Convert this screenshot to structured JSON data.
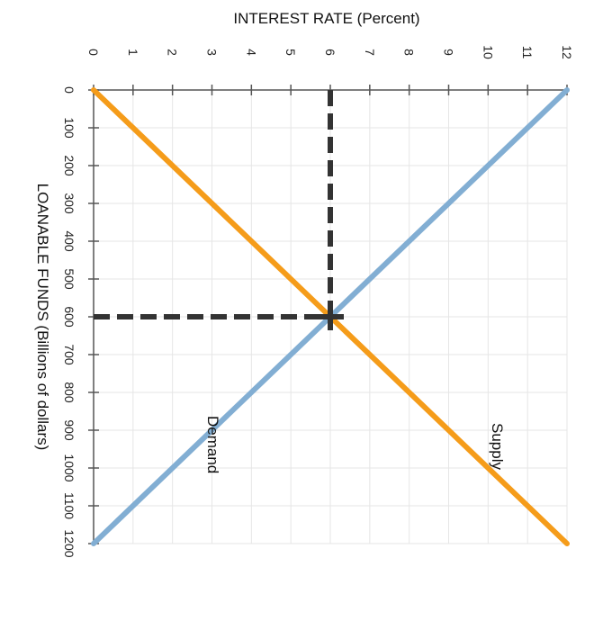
{
  "chart_data": {
    "type": "line",
    "orientation": "rotated 90deg clockwise (interest rate on top axis, loanable funds on left axis)",
    "title": "",
    "xlabel": "LOANABLE FUNDS (Billions of dollars)",
    "ylabel": "INTEREST RATE (Percent)",
    "x_ticks": [
      0,
      100,
      200,
      300,
      400,
      500,
      600,
      700,
      800,
      900,
      1000,
      1100,
      1200
    ],
    "y_ticks": [
      0,
      1,
      2,
      3,
      4,
      5,
      6,
      7,
      8,
      9,
      10,
      11,
      12
    ],
    "xlim": [
      0,
      1200
    ],
    "ylim": [
      0,
      12
    ],
    "grid": true,
    "series": [
      {
        "name": "Supply",
        "color": "#f59c1a",
        "x": [
          0,
          1200
        ],
        "y": [
          0,
          12
        ]
      },
      {
        "name": "Demand",
        "color": "#82aed3",
        "x": [
          0,
          1200
        ],
        "y": [
          12,
          0
        ]
      }
    ],
    "equilibrium": {
      "x": 600,
      "y": 6,
      "marker": "plus",
      "color": "#333333",
      "guides": "dashed"
    },
    "annotations": [
      {
        "text": "Supply",
        "x": 1000,
        "y": 10.2
      },
      {
        "text": "Demand",
        "x": 900,
        "y": 3
      }
    ]
  },
  "labels": {
    "top_axis_title": "INTEREST RATE (Percent)",
    "left_axis_title": "LOANABLE FUNDS (Billions of dollars)",
    "supply": "Supply",
    "demand": "Demand"
  },
  "ticks": {
    "rate": [
      "0",
      "1",
      "2",
      "3",
      "4",
      "5",
      "6",
      "7",
      "8",
      "9",
      "10",
      "11",
      "12"
    ],
    "funds": [
      "0",
      "100",
      "200",
      "300",
      "400",
      "500",
      "600",
      "700",
      "800",
      "900",
      "1000",
      "1100",
      "1200"
    ]
  }
}
